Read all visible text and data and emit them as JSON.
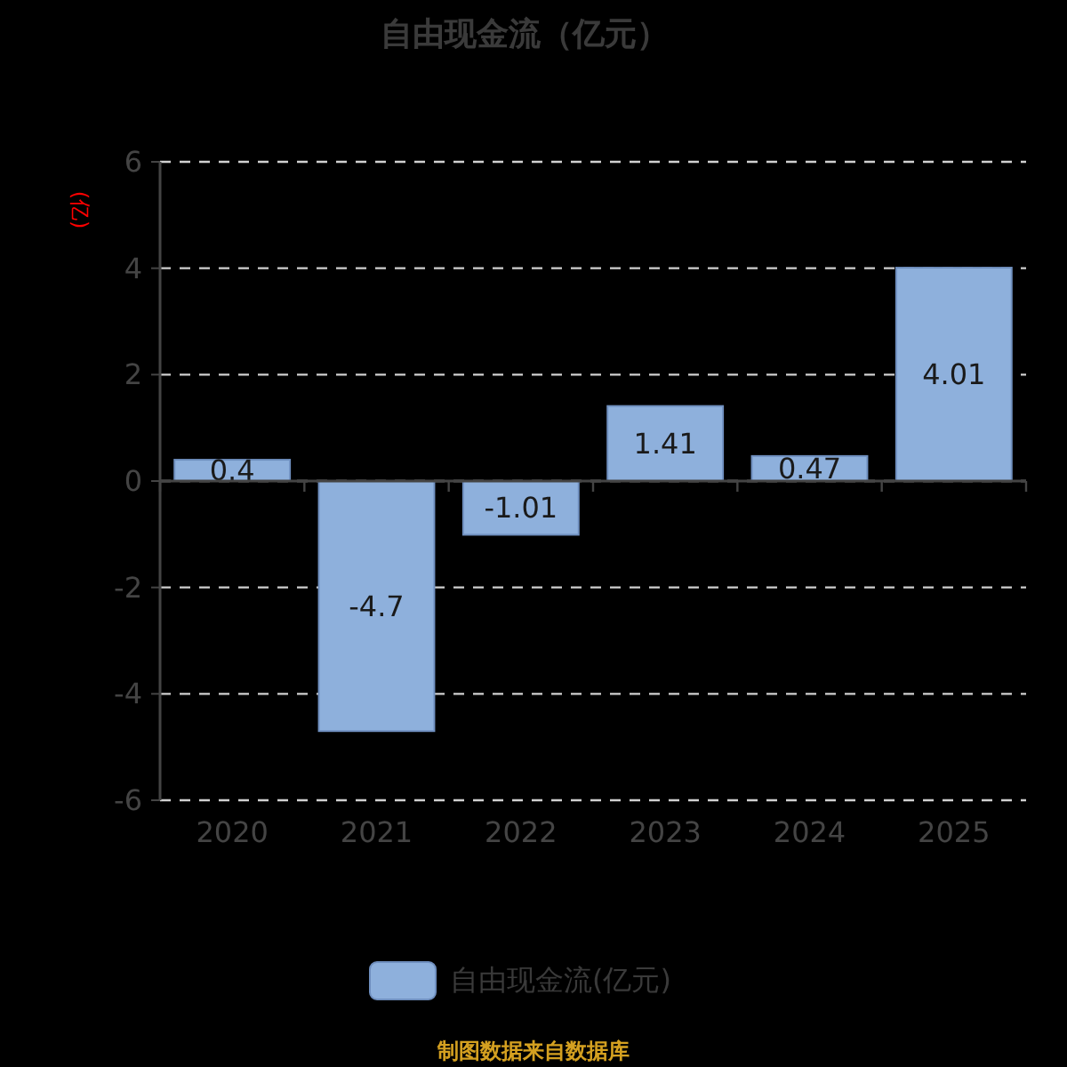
{
  "chart_data": {
    "type": "bar",
    "title": "自由现金流（亿元）",
    "ylabel": "(亿)",
    "categories": [
      "2020",
      "2021",
      "2022",
      "2023",
      "2024",
      "2025"
    ],
    "series": [
      {
        "name": "自由现金流(亿元)",
        "color": "#8eb0dc",
        "values": [
          0.4,
          -4.7,
          -1.01,
          1.41,
          0.47,
          4.01
        ]
      }
    ],
    "ylim": [
      -6,
      6
    ],
    "yticks": [
      -6,
      -4,
      -2,
      0,
      2,
      4,
      6
    ],
    "grid": "y",
    "legend": "bottom",
    "data_labels": true,
    "annotations": [
      "制图数据来自数据库"
    ]
  }
}
